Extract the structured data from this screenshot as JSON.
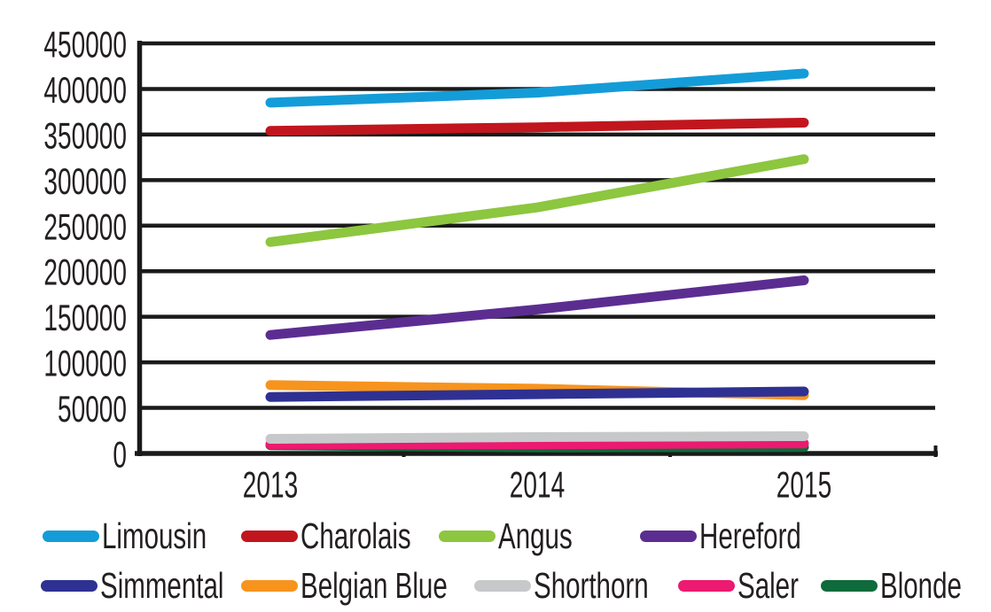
{
  "chart_data": {
    "type": "line",
    "title": "",
    "xlabel": "",
    "ylabel": "",
    "categories": [
      "2013",
      "2014",
      "2015"
    ],
    "series": [
      {
        "name": "Limousin",
        "color": "#149CD8",
        "values": [
          385000,
          396000,
          417000
        ]
      },
      {
        "name": "Charolais",
        "color": "#C1161D",
        "values": [
          354000,
          358000,
          363000
        ]
      },
      {
        "name": "Angus",
        "color": "#8DC63F",
        "values": [
          232000,
          270000,
          323000
        ]
      },
      {
        "name": "Hereford",
        "color": "#5C2D91",
        "values": [
          130000,
          158000,
          190000
        ]
      },
      {
        "name": "Simmental",
        "color": "#2E3192",
        "values": [
          62000,
          65000,
          68000
        ]
      },
      {
        "name": "Belgian Blue",
        "color": "#F7941E",
        "values": [
          75000,
          71000,
          64000
        ]
      },
      {
        "name": "Shorthorn",
        "color": "#C7C8CA",
        "values": [
          16000,
          18000,
          19000
        ]
      },
      {
        "name": "Saler",
        "color": "#EC1A70",
        "values": [
          10000,
          10000,
          11000
        ]
      },
      {
        "name": "Blonde",
        "color": "#0F6B3B",
        "values": [
          9000,
          6500,
          7000
        ]
      }
    ],
    "y_ticks": [
      0,
      50000,
      100000,
      150000,
      200000,
      250000,
      300000,
      350000,
      400000,
      450000
    ],
    "ylim": [
      0,
      450000
    ],
    "grid": true,
    "legend_position": "bottom",
    "legend_rows": [
      [
        "Limousin",
        "Charolais",
        "Angus",
        "Hereford"
      ],
      [
        "Simmental",
        "Belgian Blue",
        "Shorthorn",
        "Saler",
        "Blonde"
      ]
    ],
    "axis_color": "#1A1A1A",
    "text_color": "#231F20"
  }
}
